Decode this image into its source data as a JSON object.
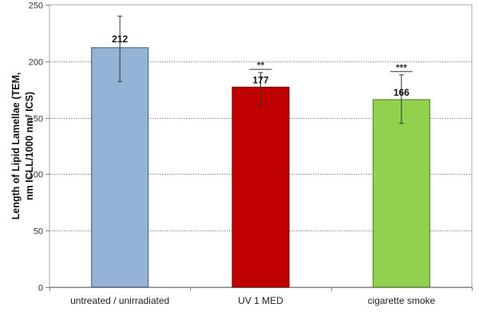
{
  "chart_data": {
    "type": "bar",
    "title": "",
    "xlabel": "",
    "ylabel_lines": [
      "Length of Lipid Lamellae (TEM,",
      "nm ICLL/1000 nm² ICS)"
    ],
    "ylabel": "Length of Lipid Lamellae (TEM, nm ICLL/1000 nm² ICS)",
    "ylim": [
      0,
      250
    ],
    "yticks": [
      0,
      50,
      100,
      150,
      200,
      250
    ],
    "grid": "horizontal dotted",
    "legend": null,
    "categories": [
      "untreated / unirradiated",
      "UV 1 MED",
      "cigarette smoke"
    ],
    "values": [
      212,
      177,
      166
    ],
    "error_bars": [
      {
        "upper": 240,
        "lower": 182
      },
      {
        "upper": 190,
        "lower": 161
      },
      {
        "upper": 188,
        "lower": 145
      }
    ],
    "data_labels": [
      "212",
      "177",
      "166"
    ],
    "significance": [
      "",
      "**",
      "***"
    ],
    "colors": [
      "#95B3D7",
      "#C00000",
      "#92D050"
    ],
    "border_colors": [
      "#4F6B8F",
      "#7A0000",
      "#5E8A2E"
    ]
  }
}
